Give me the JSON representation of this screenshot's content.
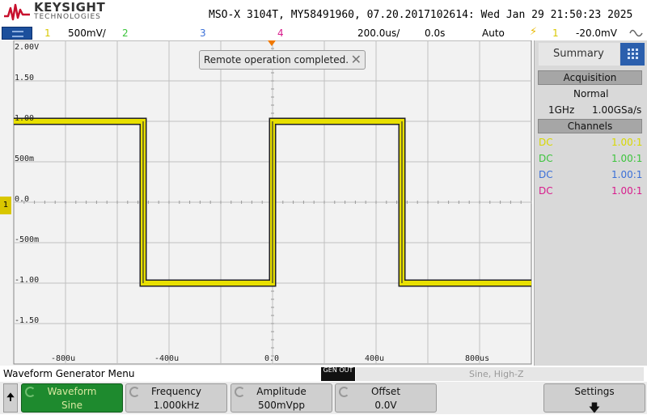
{
  "header": {
    "brand": "KEYSIGHT",
    "brand_sub": "TECHNOLOGIES",
    "instrument_info": "MSO-X 3104T, MY58491960, 07.20.2017102614: Wed Jan 29 21:50:23 2025"
  },
  "channel_bar": {
    "ch1_num": "1",
    "ch1_scale": "500mV/",
    "ch2_num": "2",
    "ch3_num": "3",
    "ch4_num": "4",
    "timebase": "200.0us/",
    "delay": "0.0s",
    "trigger_mode": "Auto",
    "trigger_source": "1",
    "trigger_level": "-20.0mV",
    "colors": {
      "ch1": "#d8c800",
      "ch2": "#3cc43c",
      "ch3": "#3a6fd8",
      "ch4": "#d81c8c"
    }
  },
  "display": {
    "toast": "Remote operation completed.",
    "y_labels": [
      "2.00V",
      "1.50",
      "1.00",
      "500m",
      "0.0",
      "-500m",
      "-1.00",
      "-1.50"
    ],
    "x_labels": [
      "-800u",
      "-400u",
      "0.0",
      "400u",
      "800us"
    ],
    "ground_marker": "1"
  },
  "chart_data": {
    "type": "line",
    "title": "",
    "series": [
      {
        "name": "",
        "color": "#e8e000",
        "x": [
          -1.0,
          -0.5,
          -0.5,
          0.0,
          0.0,
          0.5,
          0.5,
          1.0
        ],
        "y": [
          1.0,
          1.0,
          -1.0,
          -1.0,
          1.0,
          1.0,
          -1.0,
          -1.0
        ]
      }
    ],
    "xlim": [
      -1.0,
      1.0
    ],
    "ylim": [
      -2.0,
      2.0
    ],
    "x_units": "ms",
    "y_units": "V",
    "grid": true
  },
  "right_panel": {
    "tab": "Summary",
    "acquisition_head": "Acquisition",
    "acq_mode": "Normal",
    "bandwidth": "1GHz",
    "sample_rate": "1.00GSa/s",
    "channels_head": "Channels",
    "channels": [
      {
        "coupling": "DC",
        "probe": "1.00:1",
        "color": "#d8d800"
      },
      {
        "coupling": "DC",
        "probe": "1.00:1",
        "color": "#3cc43c"
      },
      {
        "coupling": "DC",
        "probe": "1.00:1",
        "color": "#3a6fd8"
      },
      {
        "coupling": "DC",
        "probe": "1.00:1",
        "color": "#d81c8c"
      }
    ]
  },
  "bottom": {
    "menu_title": "Waveform Generator Menu",
    "gen_out": "GEN OUT",
    "gen_status": "Sine, High-Z",
    "softkeys": {
      "waveform_label": "Waveform",
      "waveform_value": "Sine",
      "frequency_label": "Frequency",
      "frequency_value": "1.000kHz",
      "amplitude_label": "Amplitude",
      "amplitude_value": "500mVpp",
      "offset_label": "Offset",
      "offset_value": "0.0V",
      "settings_label": "Settings"
    }
  }
}
